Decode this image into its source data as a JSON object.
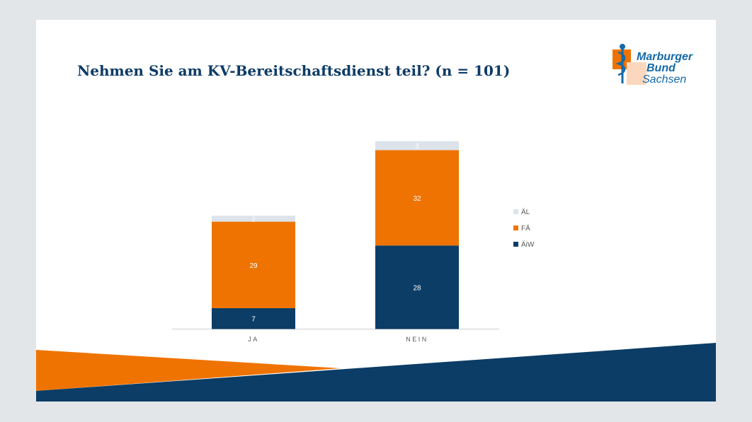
{
  "slide": {
    "title": "Nehmen Sie am KV-Bereitschaftsdienst teil? (n = 101)",
    "logo": {
      "line1": "Marburger",
      "line2": "Bund",
      "line3": "Sachsen"
    }
  },
  "colors": {
    "title": "#0d3b66",
    "AeL": "#dce3ea",
    "FAe": "#ef7300",
    "AeiW": "#0b3d66",
    "accent_orange": "#ef7300",
    "accent_navy": "#0b3d66"
  },
  "chart_data": {
    "type": "bar",
    "stacked": true,
    "categories": [
      "JA",
      "NEIN"
    ],
    "series": [
      {
        "name": "ÄiW",
        "values": [
          7,
          28
        ],
        "color": "#0b3d66",
        "label_color": "#ffffff"
      },
      {
        "name": "FÄ",
        "values": [
          29,
          32
        ],
        "color": "#ef7300",
        "label_color": "#ffffff"
      },
      {
        "name": "ÄL",
        "values": [
          2,
          3
        ],
        "color": "#dce3ea",
        "label_color": "#ffffff"
      }
    ],
    "legend_order": [
      "ÄL",
      "FÄ",
      "ÄiW"
    ],
    "legend_position": "right",
    "ylim": [
      0,
      63
    ],
    "grid": false
  }
}
